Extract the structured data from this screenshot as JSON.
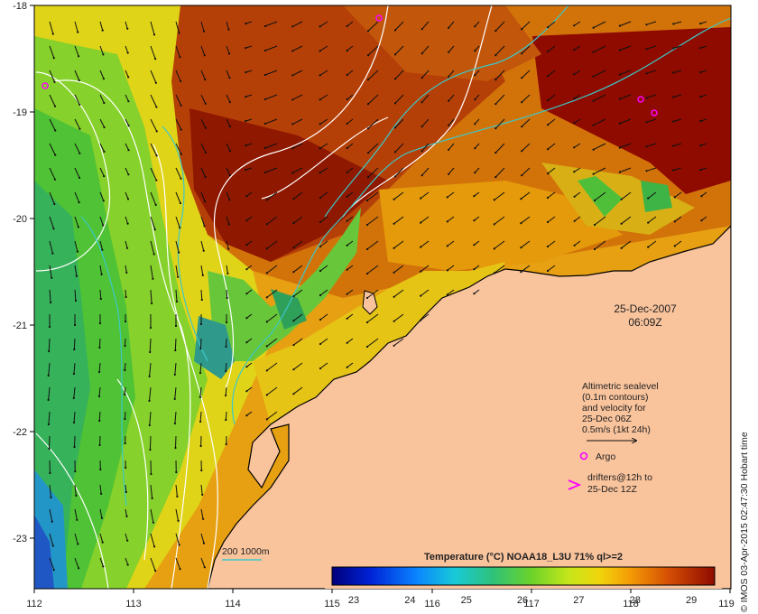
{
  "map": {
    "lat_ticks": [
      "-18",
      "-19",
      "-20",
      "-21",
      "-22",
      "-23"
    ],
    "lon_ticks": [
      "112",
      "113",
      "114",
      "115",
      "116",
      "117",
      "118",
      "119"
    ],
    "timestamp_date": "25-Dec-2007",
    "timestamp_time": "06:09Z",
    "credit": "© IMOS 03-Apr-2015 02:47:30 Hobart time",
    "colors": {
      "land": "#f9c39c",
      "warmest": "#8f0b00",
      "warm": "#c84a06",
      "orange": "#e9a10a",
      "yellow": "#e3e21a",
      "green": "#59c632",
      "cool": "#2a9d7d",
      "cold": "#1e6cc9",
      "contour": "#ffffff",
      "isobath": "#3cc8c8",
      "argo": "#ff00ff"
    }
  },
  "legend": {
    "sealevel_lines": [
      "Altimetric sealevel",
      "(0.1m contours)",
      "and velocity for",
      "25-Dec 06Z",
      "0.5m/s (1kt 24h)"
    ],
    "argo_label": "Argo",
    "drifters_lines": [
      "drifters@12h to",
      "25-Dec 12Z"
    ],
    "isobath_label": "200  1000m"
  },
  "colorbar": {
    "title": "Temperature (°C) NOAA18_L3U 71% ql>=2",
    "ticks": [
      "23",
      "24",
      "25",
      "26",
      "27",
      "28",
      "29"
    ],
    "range": [
      23,
      29.8
    ]
  }
}
